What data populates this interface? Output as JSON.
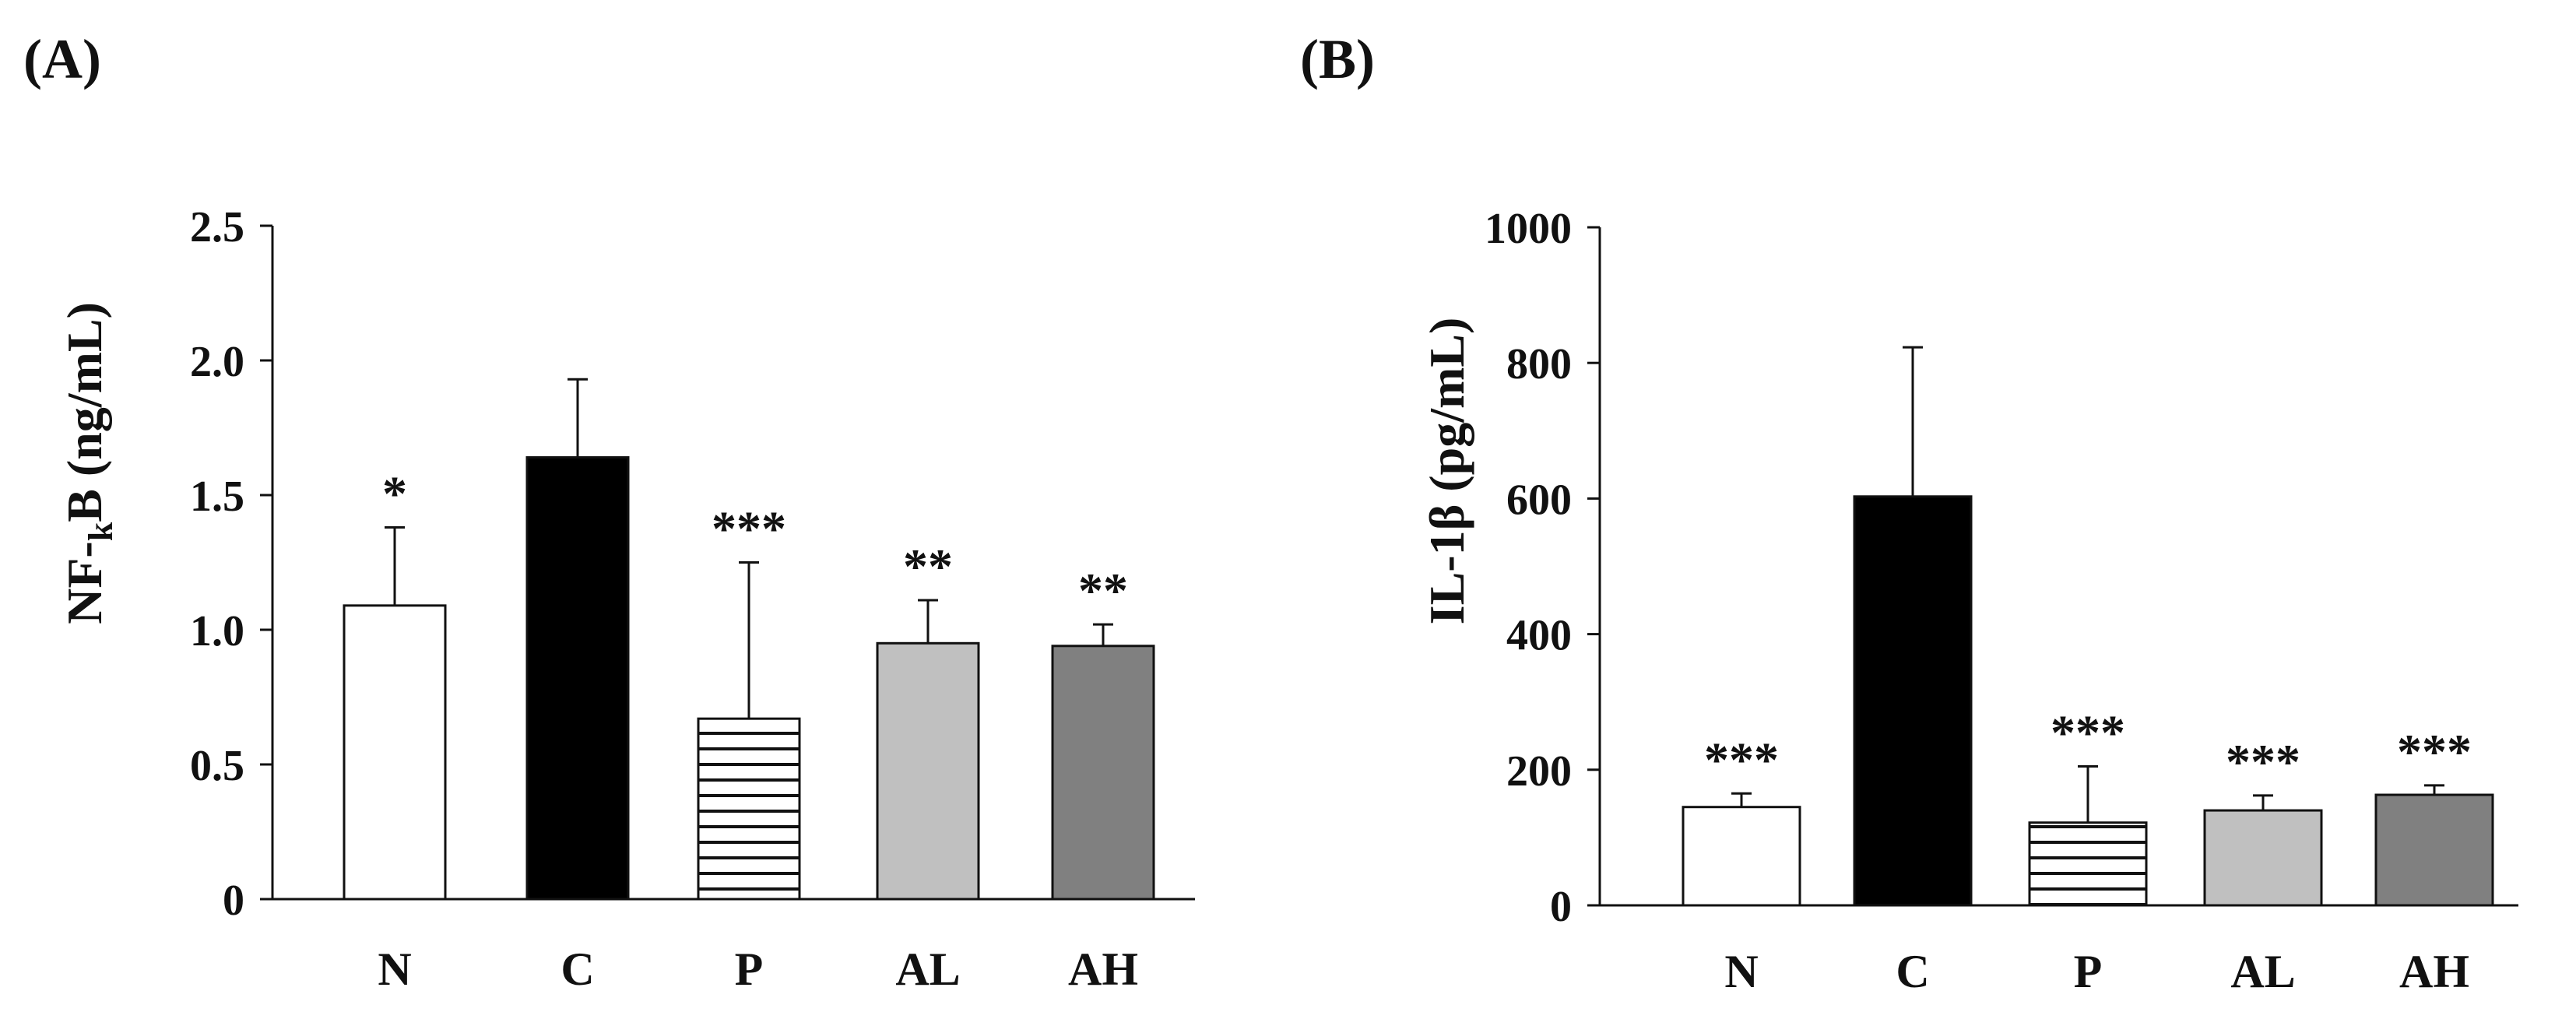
{
  "chart_data": [
    {
      "type": "bar",
      "panel_label": "(A)",
      "categories": [
        "N",
        "C",
        "P",
        "AL",
        "AH"
      ],
      "values": [
        1.09,
        1.64,
        0.67,
        0.95,
        0.94
      ],
      "errors": [
        0.29,
        0.29,
        0.58,
        0.16,
        0.08
      ],
      "significance": [
        "*",
        "",
        "***",
        "**",
        "**"
      ],
      "fills": [
        "white",
        "black",
        "hstripes",
        "#c0c0c0",
        "#808080"
      ],
      "ylabel_parts": [
        "NF-",
        "k",
        "B (ng/mL)"
      ],
      "ylim": [
        0,
        2.5
      ],
      "yticks": [
        0,
        0.5,
        1.0,
        1.5,
        2.0,
        2.5
      ],
      "ytick_labels": [
        "0",
        "0.5",
        "1.0",
        "1.5",
        "2.0",
        "2.5"
      ]
    },
    {
      "type": "bar",
      "panel_label": "(B)",
      "categories": [
        "N",
        "C",
        "P",
        "AL",
        "AH"
      ],
      "values": [
        145,
        603,
        122,
        140,
        163
      ],
      "errors": [
        20,
        220,
        83,
        22,
        14
      ],
      "significance": [
        "***",
        "",
        "***",
        "***",
        "***"
      ],
      "fills": [
        "white",
        "black",
        "hstripes",
        "#c0c0c0",
        "#808080"
      ],
      "ylabel_parts": [
        "IL-1β (pg/mL)"
      ],
      "ylim": [
        0,
        1000
      ],
      "yticks": [
        0,
        200,
        400,
        600,
        800,
        1000
      ],
      "ytick_labels": [
        "0",
        "200",
        "400",
        "600",
        "800",
        "1000"
      ]
    }
  ]
}
